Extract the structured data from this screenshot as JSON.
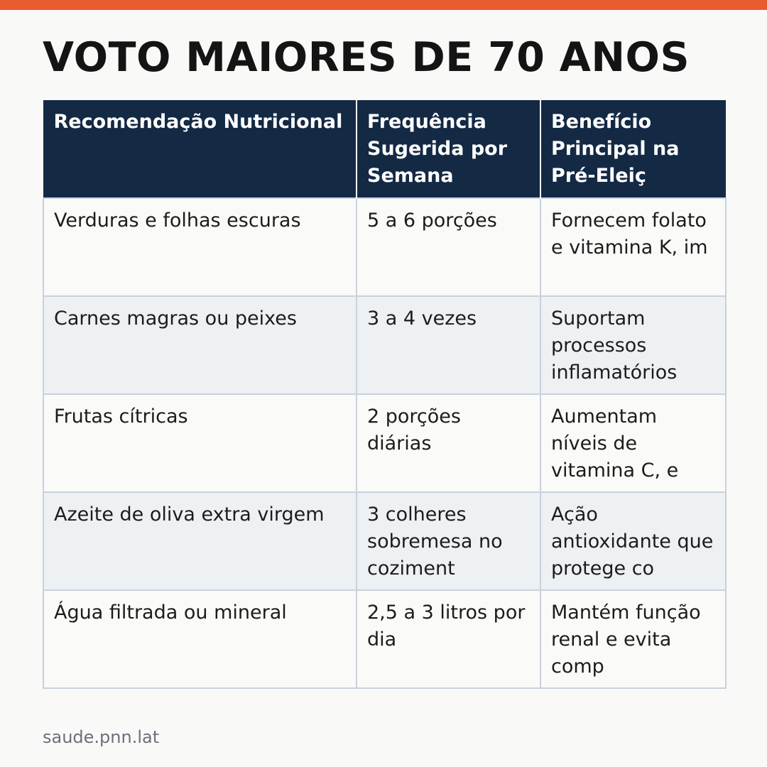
{
  "accent_color": "#e85c30",
  "header_color": "#132944",
  "title": "VOTO MAIORES DE 70 ANOS",
  "table": {
    "headers": [
      "Recomendação Nutricional",
      "Frequência Sugerida por Semana",
      "Benefício Principal na Pré-Eleiç"
    ],
    "rows": [
      [
        "Verduras e folhas escuras",
        "5 a 6 porções",
        "Fornecem folato e vitamina K, im"
      ],
      [
        "Carnes magras ou peixes",
        "3 a 4 vezes",
        "Suportam processos inflamatórios"
      ],
      [
        "Frutas cítricas",
        "2 porções diárias",
        "Aumentam níveis de vitamina C, e"
      ],
      [
        "Azeite de oliva extra virgem",
        "3 colheres sobremesa no coziment",
        "Ação antioxidante que protege co"
      ],
      [
        "Água filtrada ou mineral",
        "2,5 a 3 litros por dia",
        "Mantém função renal e evita comp"
      ]
    ]
  },
  "source": "saude.pnn.lat"
}
